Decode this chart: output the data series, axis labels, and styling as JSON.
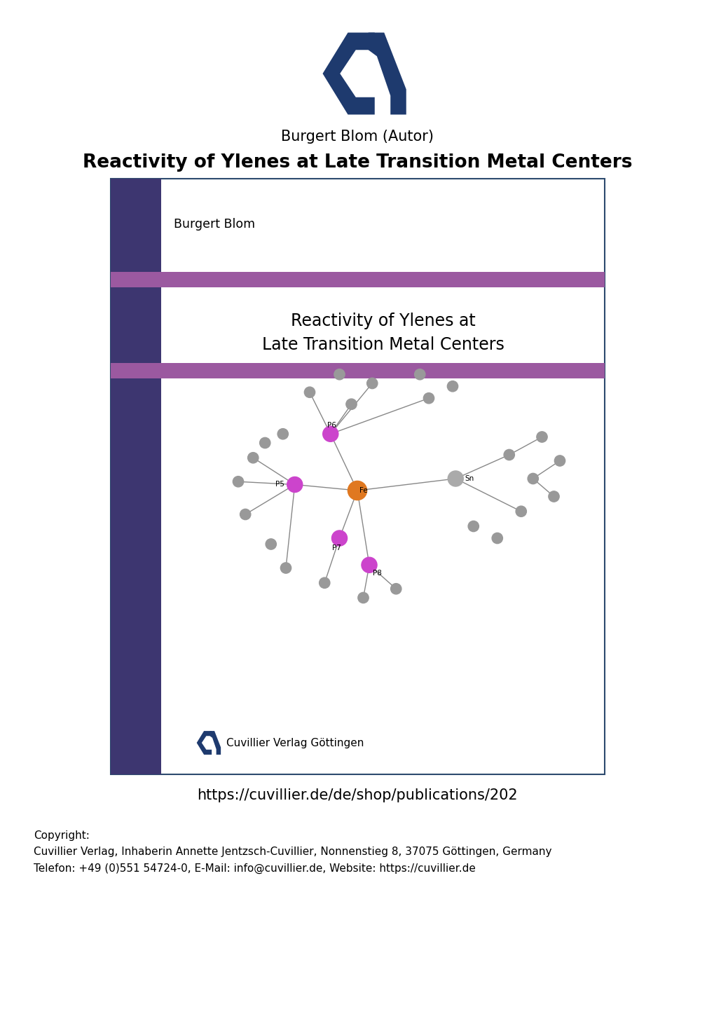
{
  "background_color": "#ffffff",
  "logo_color": "#1e3a6e",
  "author_text": "Burgert Blom (Autor)",
  "title_text": "Reactivity of Ylenes at Late Transition Metal Centers",
  "author_fontsize": 15,
  "title_fontsize": 19,
  "url_text": "https://cuvillier.de/de/shop/publications/202",
  "url_fontsize": 15,
  "copyright_text": "Copyright:\nCuvillier Verlag, Inhaberin Annette Jentzsch-Cuvillier, Nonnenstieg 8, 37075 Göttingen, Germany\nTelefon: +49 (0)551 54724-0, E-Mail: info@cuvillier.de, Website: https://cuvillier.de",
  "copyright_fontsize": 11,
  "cover_border_color": "#2d4a6e",
  "cover_bg": "#ffffff",
  "sidebar_color": "#3d3670",
  "stripe_color": "#9b59a0",
  "cover_author_text": "Burgert Blom",
  "cover_title_line1": "Reactivity of Ylenes at",
  "cover_title_line2": "Late Transition Metal Centers",
  "publisher_text": "Cuvillier Verlag Göttingen",
  "logo_color_small": "#1e3a6e"
}
